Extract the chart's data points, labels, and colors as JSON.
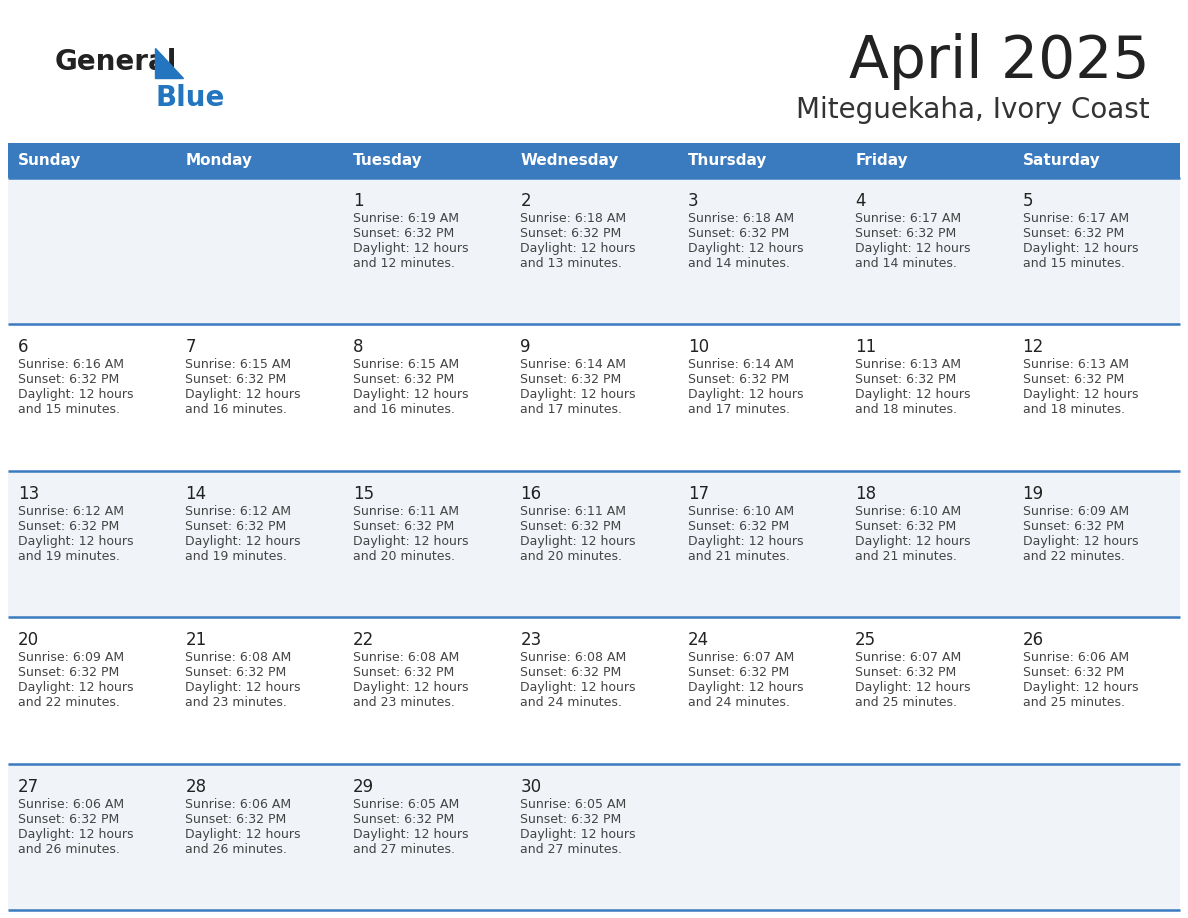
{
  "title": "April 2025",
  "subtitle": "Miteguekaha, Ivory Coast",
  "days_of_week": [
    "Sunday",
    "Monday",
    "Tuesday",
    "Wednesday",
    "Thursday",
    "Friday",
    "Saturday"
  ],
  "header_bg_color": "#3a7abf",
  "header_text_color": "#ffffff",
  "row_bg_colors": [
    "#f0f4f8",
    "#ffffff",
    "#f0f4f8",
    "#ffffff",
    "#f0f4f8"
  ],
  "divider_color": "#3a7abf",
  "cell_text_color": "#444444",
  "day_num_color": "#222222",
  "title_color": "#222222",
  "subtitle_color": "#333333",
  "logo_general_color": "#222222",
  "logo_blue_color": "#2275be",
  "fig_width": 11.88,
  "fig_height": 9.18,
  "dpi": 100,
  "calendar_data": [
    [
      null,
      null,
      {
        "day": 1,
        "sunrise": "6:19 AM",
        "sunset": "6:32 PM",
        "daylight": "12 hours",
        "daylight2": "and 12 minutes."
      },
      {
        "day": 2,
        "sunrise": "6:18 AM",
        "sunset": "6:32 PM",
        "daylight": "12 hours",
        "daylight2": "and 13 minutes."
      },
      {
        "day": 3,
        "sunrise": "6:18 AM",
        "sunset": "6:32 PM",
        "daylight": "12 hours",
        "daylight2": "and 14 minutes."
      },
      {
        "day": 4,
        "sunrise": "6:17 AM",
        "sunset": "6:32 PM",
        "daylight": "12 hours",
        "daylight2": "and 14 minutes."
      },
      {
        "day": 5,
        "sunrise": "6:17 AM",
        "sunset": "6:32 PM",
        "daylight": "12 hours",
        "daylight2": "and 15 minutes."
      }
    ],
    [
      {
        "day": 6,
        "sunrise": "6:16 AM",
        "sunset": "6:32 PM",
        "daylight": "12 hours",
        "daylight2": "and 15 minutes."
      },
      {
        "day": 7,
        "sunrise": "6:15 AM",
        "sunset": "6:32 PM",
        "daylight": "12 hours",
        "daylight2": "and 16 minutes."
      },
      {
        "day": 8,
        "sunrise": "6:15 AM",
        "sunset": "6:32 PM",
        "daylight": "12 hours",
        "daylight2": "and 16 minutes."
      },
      {
        "day": 9,
        "sunrise": "6:14 AM",
        "sunset": "6:32 PM",
        "daylight": "12 hours",
        "daylight2": "and 17 minutes."
      },
      {
        "day": 10,
        "sunrise": "6:14 AM",
        "sunset": "6:32 PM",
        "daylight": "12 hours",
        "daylight2": "and 17 minutes."
      },
      {
        "day": 11,
        "sunrise": "6:13 AM",
        "sunset": "6:32 PM",
        "daylight": "12 hours",
        "daylight2": "and 18 minutes."
      },
      {
        "day": 12,
        "sunrise": "6:13 AM",
        "sunset": "6:32 PM",
        "daylight": "12 hours",
        "daylight2": "and 18 minutes."
      }
    ],
    [
      {
        "day": 13,
        "sunrise": "6:12 AM",
        "sunset": "6:32 PM",
        "daylight": "12 hours",
        "daylight2": "and 19 minutes."
      },
      {
        "day": 14,
        "sunrise": "6:12 AM",
        "sunset": "6:32 PM",
        "daylight": "12 hours",
        "daylight2": "and 19 minutes."
      },
      {
        "day": 15,
        "sunrise": "6:11 AM",
        "sunset": "6:32 PM",
        "daylight": "12 hours",
        "daylight2": "and 20 minutes."
      },
      {
        "day": 16,
        "sunrise": "6:11 AM",
        "sunset": "6:32 PM",
        "daylight": "12 hours",
        "daylight2": "and 20 minutes."
      },
      {
        "day": 17,
        "sunrise": "6:10 AM",
        "sunset": "6:32 PM",
        "daylight": "12 hours",
        "daylight2": "and 21 minutes."
      },
      {
        "day": 18,
        "sunrise": "6:10 AM",
        "sunset": "6:32 PM",
        "daylight": "12 hours",
        "daylight2": "and 21 minutes."
      },
      {
        "day": 19,
        "sunrise": "6:09 AM",
        "sunset": "6:32 PM",
        "daylight": "12 hours",
        "daylight2": "and 22 minutes."
      }
    ],
    [
      {
        "day": 20,
        "sunrise": "6:09 AM",
        "sunset": "6:32 PM",
        "daylight": "12 hours",
        "daylight2": "and 22 minutes."
      },
      {
        "day": 21,
        "sunrise": "6:08 AM",
        "sunset": "6:32 PM",
        "daylight": "12 hours",
        "daylight2": "and 23 minutes."
      },
      {
        "day": 22,
        "sunrise": "6:08 AM",
        "sunset": "6:32 PM",
        "daylight": "12 hours",
        "daylight2": "and 23 minutes."
      },
      {
        "day": 23,
        "sunrise": "6:08 AM",
        "sunset": "6:32 PM",
        "daylight": "12 hours",
        "daylight2": "and 24 minutes."
      },
      {
        "day": 24,
        "sunrise": "6:07 AM",
        "sunset": "6:32 PM",
        "daylight": "12 hours",
        "daylight2": "and 24 minutes."
      },
      {
        "day": 25,
        "sunrise": "6:07 AM",
        "sunset": "6:32 PM",
        "daylight": "12 hours",
        "daylight2": "and 25 minutes."
      },
      {
        "day": 26,
        "sunrise": "6:06 AM",
        "sunset": "6:32 PM",
        "daylight": "12 hours",
        "daylight2": "and 25 minutes."
      }
    ],
    [
      {
        "day": 27,
        "sunrise": "6:06 AM",
        "sunset": "6:32 PM",
        "daylight": "12 hours",
        "daylight2": "and 26 minutes."
      },
      {
        "day": 28,
        "sunrise": "6:06 AM",
        "sunset": "6:32 PM",
        "daylight": "12 hours",
        "daylight2": "and 26 minutes."
      },
      {
        "day": 29,
        "sunrise": "6:05 AM",
        "sunset": "6:32 PM",
        "daylight": "12 hours",
        "daylight2": "and 27 minutes."
      },
      {
        "day": 30,
        "sunrise": "6:05 AM",
        "sunset": "6:32 PM",
        "daylight": "12 hours",
        "daylight2": "and 27 minutes."
      },
      null,
      null,
      null
    ]
  ]
}
